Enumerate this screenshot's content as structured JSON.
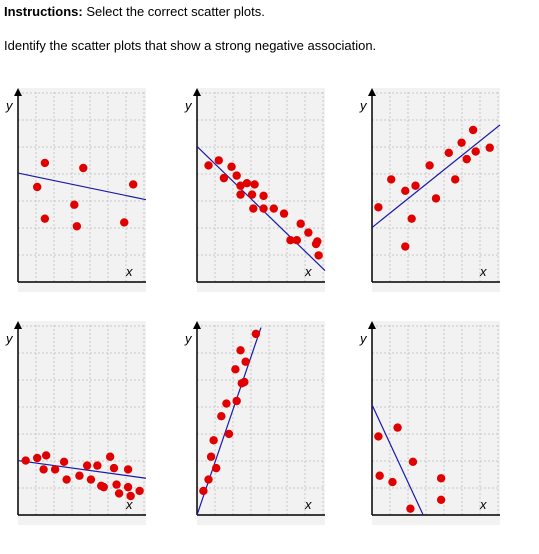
{
  "instructions": {
    "label": "Instructions:",
    "text": "Select the correct scatter plots."
  },
  "question": "Identify the scatter plots that show a strong negative association.",
  "chart_data": [
    {
      "type": "scatter",
      "xlabel": "x",
      "ylabel": "y",
      "xlim": [
        0,
        10
      ],
      "ylim": [
        0,
        15
      ],
      "grid": true,
      "color": "#e00000",
      "x": [
        1.5,
        2.1,
        2.1,
        4.4,
        4.6,
        5.1,
        8.3,
        9.0
      ],
      "y": [
        7.5,
        9.4,
        5.0,
        6.1,
        4.4,
        9.0,
        4.7,
        7.7
      ],
      "fit_line": {
        "x": [
          0,
          10
        ],
        "y": [
          8.6,
          6.5
        ],
        "color": "#1a1aaa"
      }
    },
    {
      "type": "scatter",
      "xlabel": "x",
      "ylabel": "y",
      "xlim": [
        0,
        10
      ],
      "ylim": [
        0,
        15
      ],
      "grid": true,
      "color": "#e00000",
      "x": [
        0.9,
        1.7,
        2.1,
        2.7,
        3.1,
        3.4,
        3.4,
        3.9,
        4.3,
        4.5,
        4.4,
        5.2,
        5.2,
        6.0,
        6.8,
        7.3,
        7.8,
        8.1,
        8.7,
        9.3,
        9.4,
        9.5
      ],
      "y": [
        9.2,
        9.6,
        8.2,
        9.1,
        8.4,
        7.6,
        6.9,
        7.8,
        6.9,
        7.7,
        5.8,
        6.8,
        5.8,
        5.8,
        5.4,
        3.3,
        3.3,
        4.6,
        3.9,
        3.0,
        3.2,
        2.1
      ],
      "fit_line": {
        "x": [
          0,
          10
        ],
        "y": [
          10.7,
          0.9
        ],
        "color": "#1a1aaa"
      }
    },
    {
      "type": "scatter",
      "xlabel": "x",
      "ylabel": "y",
      "xlim": [
        0,
        10
      ],
      "ylim": [
        0,
        15
      ],
      "grid": true,
      "color": "#e00000",
      "x": [
        0.5,
        1.5,
        2.6,
        2.6,
        3.1,
        3.4,
        4.5,
        5.0,
        6.0,
        6.5,
        7.0,
        7.4,
        7.9,
        8.1,
        9.2
      ],
      "y": [
        5.9,
        8.1,
        2.8,
        7.2,
        5.0,
        7.6,
        9.2,
        6.6,
        10.2,
        8.1,
        11.0,
        9.7,
        12.0,
        10.3,
        10.6
      ],
      "fit_line": {
        "x": [
          0,
          10
        ],
        "y": [
          4.3,
          12.4
        ],
        "color": "#1a1aaa"
      }
    },
    {
      "type": "scatter",
      "xlabel": "x",
      "ylabel": "y",
      "xlim": [
        0,
        10
      ],
      "ylim": [
        0,
        15
      ],
      "grid": true,
      "color": "#e00000",
      "x": [
        0.6,
        1.5,
        2.0,
        2.2,
        2.9,
        3.6,
        3.8,
        4.8,
        5.4,
        5.7,
        6.2,
        6.5,
        6.7,
        7.2,
        7.5,
        7.7,
        7.9,
        8.6,
        8.6,
        8.8,
        9.5
      ],
      "y": [
        4.3,
        4.5,
        3.6,
        4.7,
        3.6,
        4.2,
        2.8,
        3.1,
        3.9,
        2.8,
        3.9,
        2.3,
        2.2,
        4.6,
        3.7,
        2.4,
        1.7,
        3.6,
        2.2,
        1.5,
        1.9
      ],
      "fit_line": {
        "x": [
          0,
          10
        ],
        "y": [
          4.3,
          2.9
        ],
        "color": "#1a1aaa"
      }
    },
    {
      "type": "scatter",
      "xlabel": "x",
      "ylabel": "y",
      "xlim": [
        0,
        10
      ],
      "ylim": [
        0,
        15
      ],
      "grid": true,
      "color": "#e00000",
      "x": [
        0.5,
        0.9,
        1.1,
        1.3,
        1.5,
        1.9,
        2.3,
        2.5,
        3.0,
        3.1,
        3.4,
        3.5,
        3.7,
        3.8,
        4.6
      ],
      "y": [
        1.9,
        2.8,
        4.6,
        5.9,
        3.7,
        7.8,
        8.8,
        6.4,
        11.5,
        9.0,
        13.0,
        10.4,
        10.5,
        12.1,
        14.3
      ],
      "fit_line": {
        "x": [
          0,
          5.0
        ],
        "y": [
          0,
          14.8
        ],
        "color": "#1a1aaa"
      }
    },
    {
      "type": "scatter",
      "xlabel": "x",
      "ylabel": "y",
      "xlim": [
        0,
        10
      ],
      "ylim": [
        0,
        15
      ],
      "grid": true,
      "color": "#e00000",
      "x": [
        0.5,
        0.6,
        1.6,
        2.0,
        3.2,
        3.0,
        5.4,
        5.4
      ],
      "y": [
        6.2,
        3.1,
        2.6,
        6.9,
        4.2,
        0.5,
        2.9,
        1.2
      ],
      "fit_line": {
        "x": [
          0,
          4.0
        ],
        "y": [
          8.7,
          0
        ],
        "color": "#1a1aaa"
      }
    }
  ]
}
